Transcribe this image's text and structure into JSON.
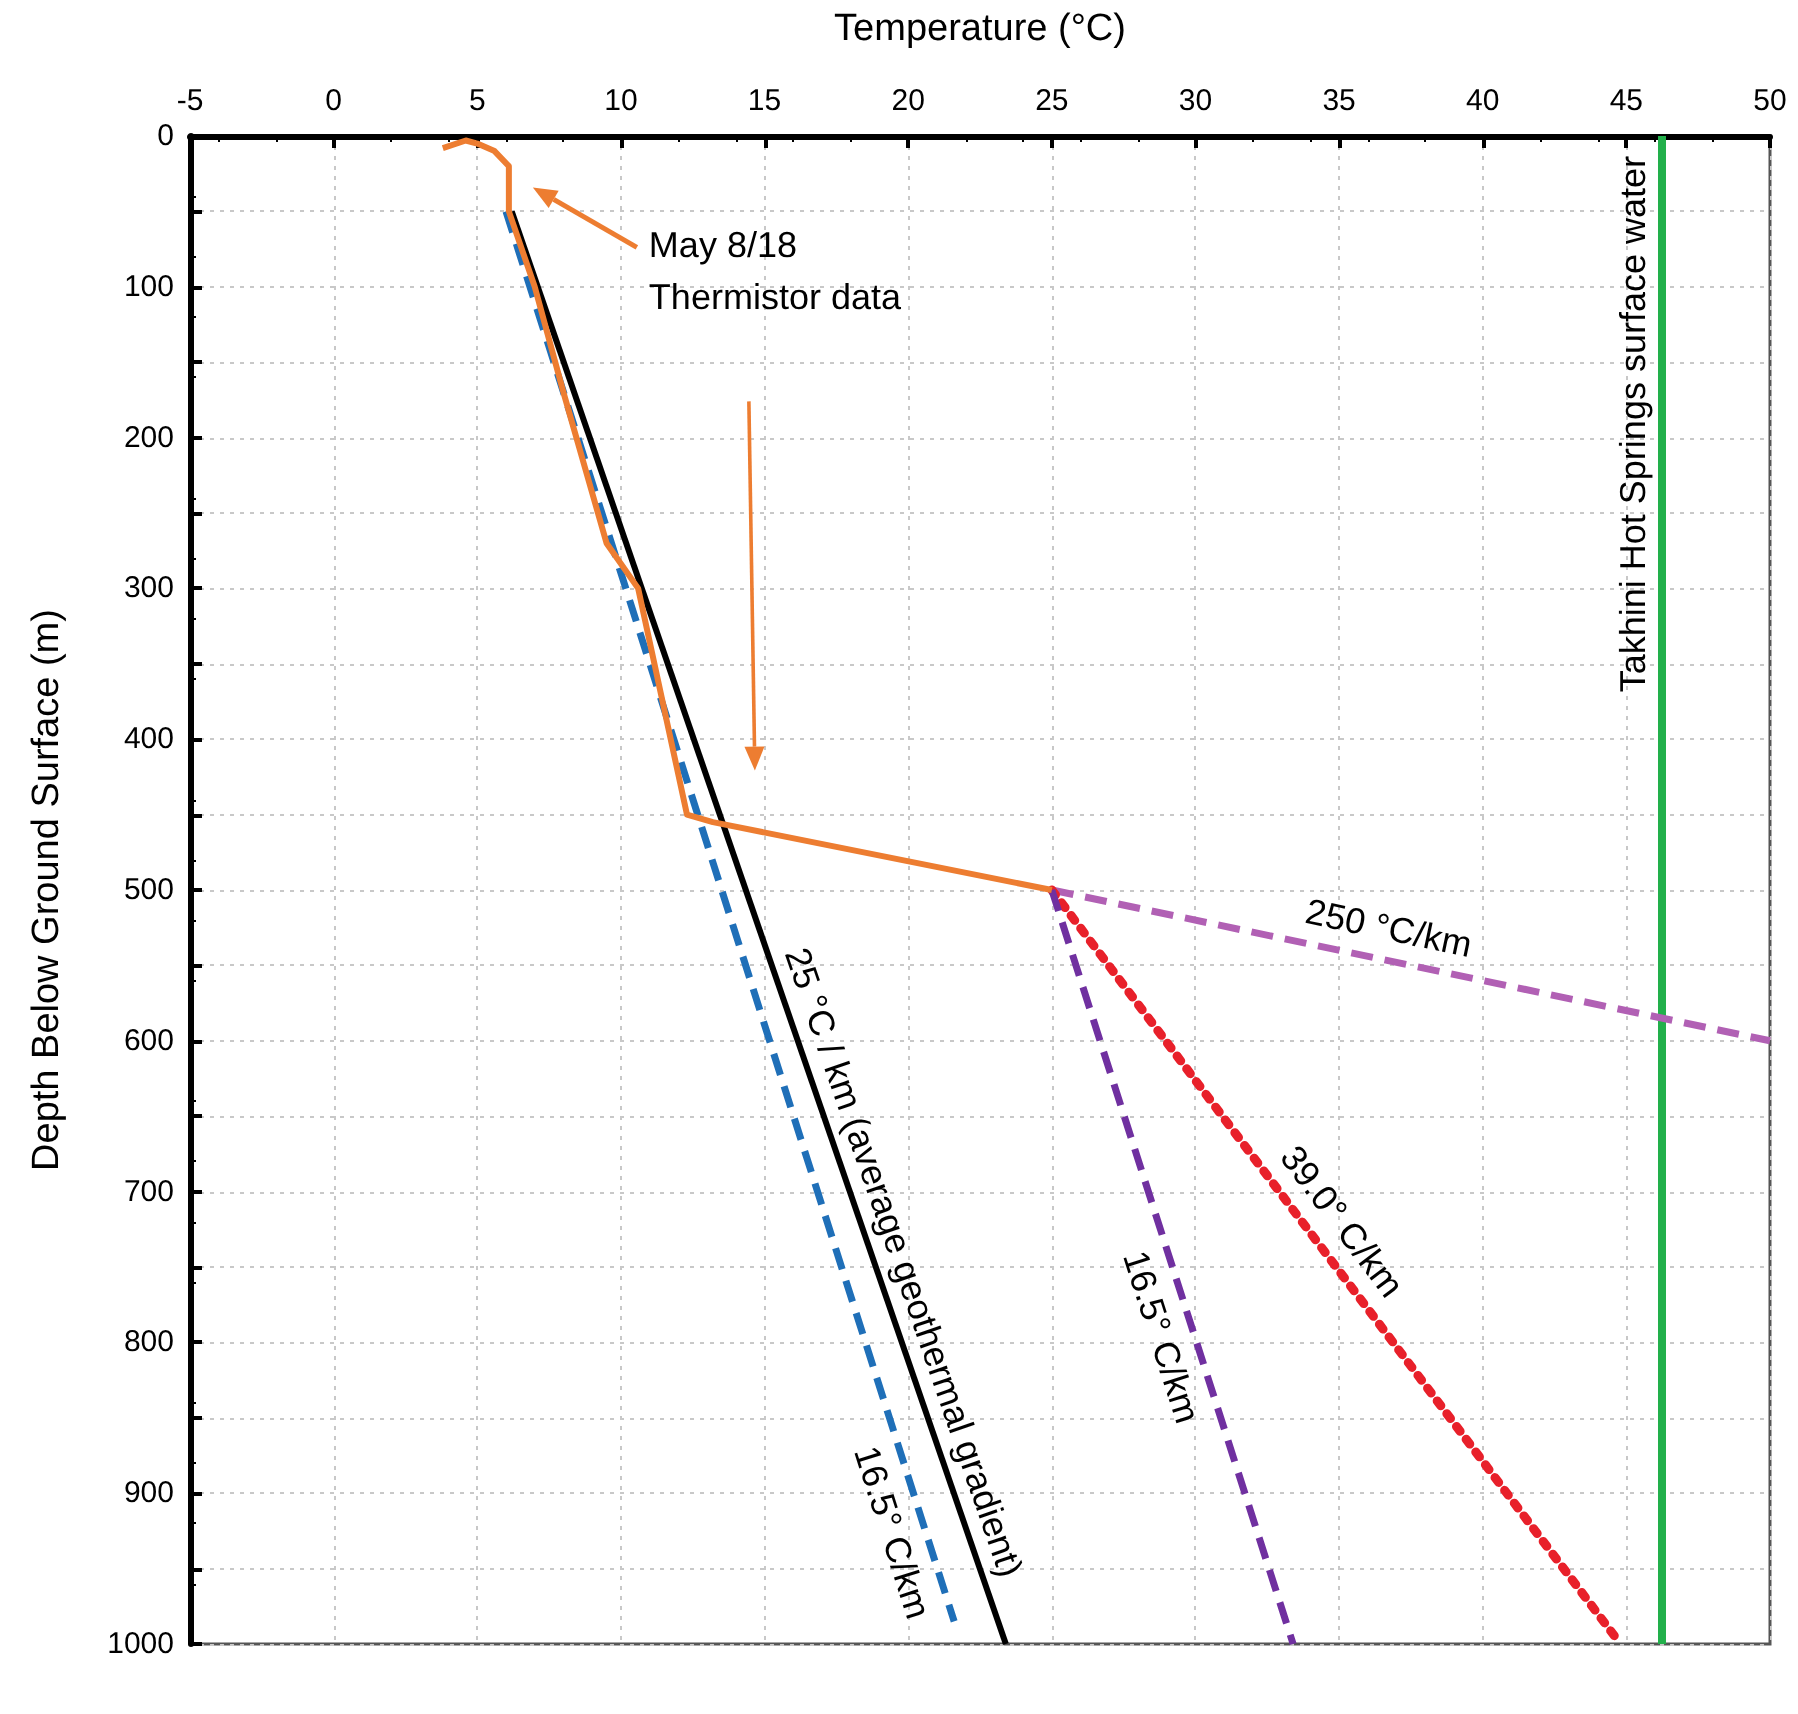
{
  "chart_data": {
    "type": "line",
    "xlabel": "Temperature (°C)",
    "ylabel": "Depth Below Ground Surface (m)",
    "xlim": [
      -5,
      50
    ],
    "xticks": [
      -5,
      0,
      5,
      10,
      15,
      20,
      25,
      30,
      35,
      40,
      45,
      50
    ],
    "ylim": [
      1000,
      0
    ],
    "yticks": [
      0,
      {
        "value": 50,
        "label": null
      },
      100,
      {
        "value": 150,
        "label": null
      },
      200,
      {
        "value": 250,
        "label": null
      },
      300,
      {
        "value": 350,
        "label": null
      },
      400,
      {
        "value": 450,
        "label": null
      },
      500,
      {
        "value": 550,
        "label": null
      },
      600,
      {
        "value": 650,
        "label": null
      },
      700,
      {
        "value": 750,
        "label": null
      },
      800,
      {
        "value": 850,
        "label": null
      },
      900,
      {
        "value": 950,
        "label": null
      },
      1000
    ],
    "grid": true,
    "legend": false,
    "marker": "none",
    "series": [
      {
        "name": "May 8/18\nThermistor data",
        "color": "#ed7d31",
        "line_style": "solid",
        "x": [
          3.8,
          4.6,
          5,
          5.6,
          6.1,
          6.1,
          7,
          8,
          9.5,
          10.6,
          12.3,
          13.2,
          25
        ],
        "values": [
          8,
          3,
          5,
          10,
          20,
          50,
          100,
          170,
          270,
          300,
          450,
          455,
          500
        ]
      },
      {
        "name": "25 °C / km (average geothermal gradient)",
        "color": "#000000",
        "line_style": "solid",
        "x": [
          6.2,
          23.4
        ],
        "values": [
          50,
          1000
        ]
      },
      {
        "name": "16.5° C/km",
        "color": "#1f6fb8",
        "line_style": "dashed",
        "x": [
          6,
          21.6
        ],
        "values": [
          50,
          985
        ]
      },
      {
        "name": "16.5° C/km",
        "color": "#7030a0",
        "line_style": "dashed",
        "x": [
          25,
          33.4
        ],
        "values": [
          500,
          1000
        ]
      },
      {
        "name": "39.0° C/km",
        "color": "#e8202a",
        "line_style": "dotted",
        "x": [
          25,
          44.6
        ],
        "values": [
          500,
          995
        ]
      },
      {
        "name": "250 °C/km",
        "color": "#b160b4",
        "line_style": "dashed",
        "x": [
          25,
          50
        ],
        "values": [
          500,
          600
        ]
      }
    ],
    "ref_lines": [
      {
        "axis": "x",
        "value": 46.2,
        "label": "Takhini Hot Springs surface water",
        "color": "#22b04b",
        "line_style": "solid"
      }
    ]
  }
}
